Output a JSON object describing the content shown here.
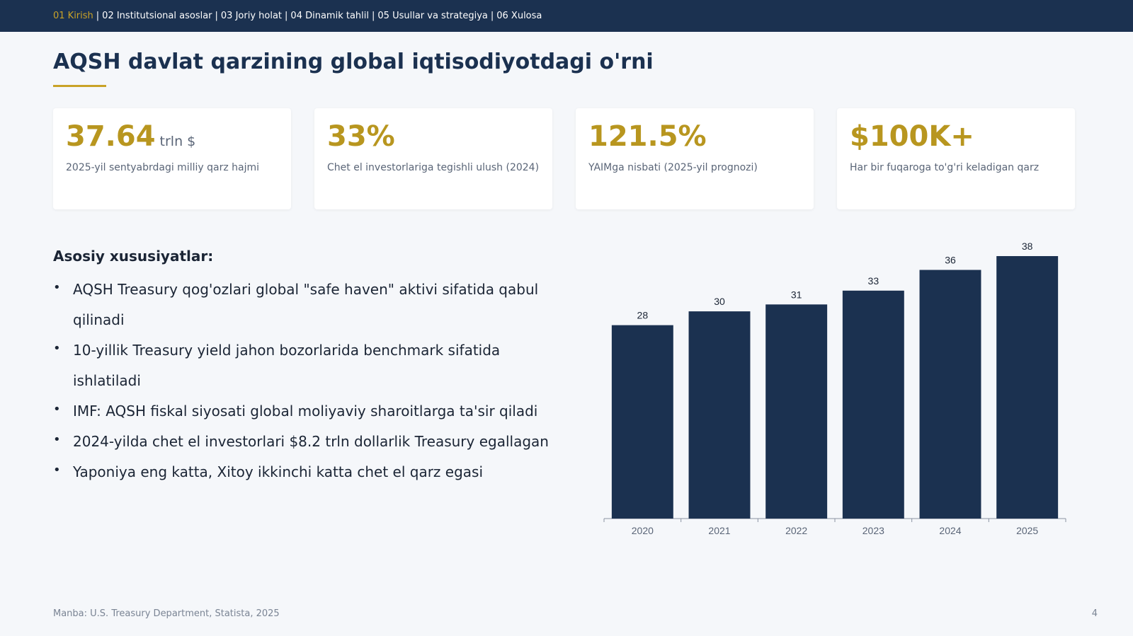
{
  "nav": {
    "items": [
      {
        "label": "01 Kirish",
        "active": true
      },
      {
        "label": "02 Institutsional asoslar",
        "active": false
      },
      {
        "label": "03 Joriy holat",
        "active": false
      },
      {
        "label": "04 Dinamik tahlil",
        "active": false
      },
      {
        "label": "05 Usullar va strategiya",
        "active": false
      },
      {
        "label": "06 Xulosa",
        "active": false
      }
    ],
    "separator": "|"
  },
  "title": "AQSH davlat qarzining global iqtisodiyotdagi o'rni",
  "stats": [
    {
      "value": "37.64",
      "unit": "trln $",
      "desc": "2025-yil sentyabrdagi milliy qarz hajmi"
    },
    {
      "value": "33%",
      "unit": "",
      "desc": "Chet el investorlariga tegishli ulush (2024)"
    },
    {
      "value": "121.5%",
      "unit": "",
      "desc": "YAIMga nisbati (2025-yil prognozi)"
    },
    {
      "value": "$100K+",
      "unit": "",
      "desc": "Har bir fuqaroga to'g'ri keladigan qarz"
    }
  ],
  "features": {
    "title": "Asosiy xususiyatlar:",
    "items": [
      "AQSH Treasury qog'ozlari global \"safe haven\" aktivi sifatida qabul qilinadi",
      "10-yillik Treasury yield jahon bozorlarida benchmark sifatida ishlatiladi",
      "IMF: AQSH fiskal siyosati global moliyaviy sharoitlarga ta'sir qiladi",
      "2024-yilda chet el investorlari $8.2 trln dollarlik Treasury egallagan",
      "Yaponiya eng katta, Xitoy ikkinchi katta chet el qarz egasi"
    ]
  },
  "chart_data": {
    "type": "bar",
    "categories": [
      "2020",
      "2021",
      "2022",
      "2023",
      "2024",
      "2025"
    ],
    "values": [
      28,
      30,
      31,
      33,
      36,
      38
    ],
    "title": "",
    "xlabel": "",
    "ylabel": "",
    "ylim": [
      0,
      38
    ],
    "grid": false,
    "data_labels": true,
    "bar_color": "#1b3150"
  },
  "footer": {
    "source": "Manba: U.S. Treasury Department, Statista, 2025",
    "page": "4"
  },
  "colors": {
    "nav_bg": "#1b3150",
    "accent": "#c9a227",
    "stat_value": "#b8961f"
  }
}
